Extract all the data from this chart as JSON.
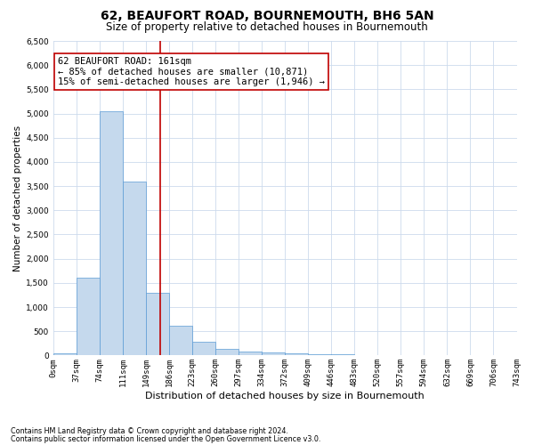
{
  "title1": "62, BEAUFORT ROAD, BOURNEMOUTH, BH6 5AN",
  "title2": "Size of property relative to detached houses in Bournemouth",
  "xlabel": "Distribution of detached houses by size in Bournemouth",
  "ylabel": "Number of detached properties",
  "footnote1": "Contains HM Land Registry data © Crown copyright and database right 2024.",
  "footnote2": "Contains public sector information licensed under the Open Government Licence v3.0.",
  "bin_labels": [
    "0sqm",
    "37sqm",
    "74sqm",
    "111sqm",
    "149sqm",
    "186sqm",
    "223sqm",
    "260sqm",
    "297sqm",
    "334sqm",
    "372sqm",
    "409sqm",
    "446sqm",
    "483sqm",
    "520sqm",
    "557sqm",
    "594sqm",
    "632sqm",
    "669sqm",
    "706sqm",
    "743sqm"
  ],
  "bar_heights": [
    50,
    1600,
    5050,
    3600,
    1300,
    620,
    280,
    130,
    90,
    60,
    50,
    30,
    20,
    5,
    0,
    0,
    0,
    0,
    0,
    0
  ],
  "bar_color": "#c5d9ed",
  "bar_edge_color": "#5b9bd5",
  "vline_x": 4.62,
  "vline_color": "#c00000",
  "ylim": [
    0,
    6500
  ],
  "yticks": [
    0,
    500,
    1000,
    1500,
    2000,
    2500,
    3000,
    3500,
    4000,
    4500,
    5000,
    5500,
    6000,
    6500
  ],
  "annotation_text": "62 BEAUFORT ROAD: 161sqm\n← 85% of detached houses are smaller (10,871)\n15% of semi-detached houses are larger (1,946) →",
  "annotation_box_color": "#ffffff",
  "annotation_box_edge": "#c00000",
  "bg_color": "#ffffff",
  "grid_color": "#ccdaed",
  "title1_fontsize": 10,
  "title2_fontsize": 8.5,
  "xlabel_fontsize": 8,
  "ylabel_fontsize": 7.5,
  "tick_fontsize": 6.5,
  "annotation_fontsize": 7.5,
  "footnote_fontsize": 5.8
}
